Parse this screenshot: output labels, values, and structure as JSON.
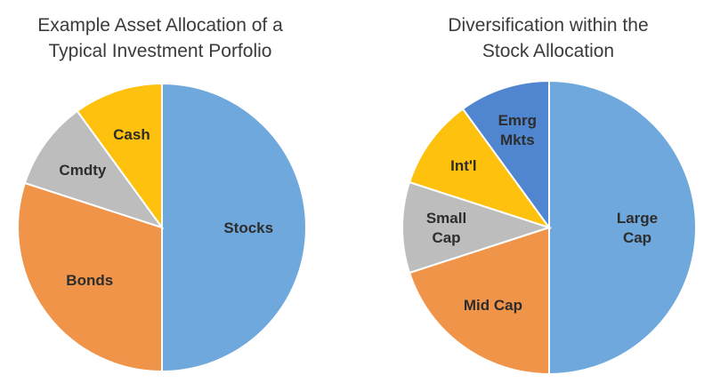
{
  "chart_data": [
    {
      "type": "pie",
      "title": "Example Asset Allocation of a\nTypical Investment Porfolio",
      "start": "12 o'clock, clockwise",
      "slices": [
        {
          "label": "Stocks",
          "value": 50,
          "color": "#6fa8dc"
        },
        {
          "label": "Bonds",
          "value": 30,
          "color": "#f0944a"
        },
        {
          "label": "Cmdty",
          "value": 10,
          "color": "#bdbdbd"
        },
        {
          "label": "Cash",
          "value": 10,
          "color": "#fec10e"
        }
      ]
    },
    {
      "type": "pie",
      "title": "Diversification within the\nStock Allocation",
      "start": "12 o'clock, clockwise",
      "slices": [
        {
          "label": "Large\nCap",
          "value": 50,
          "color": "#6fa8dc"
        },
        {
          "label": "Mid Cap",
          "value": 20,
          "color": "#f0944a"
        },
        {
          "label": "Small\nCap",
          "value": 10,
          "color": "#bdbdbd"
        },
        {
          "label": "Int'l",
          "value": 10,
          "color": "#fec10e"
        },
        {
          "label": "Emrg\nMkts",
          "value": 10,
          "color": "#4f86cf"
        }
      ]
    }
  ]
}
